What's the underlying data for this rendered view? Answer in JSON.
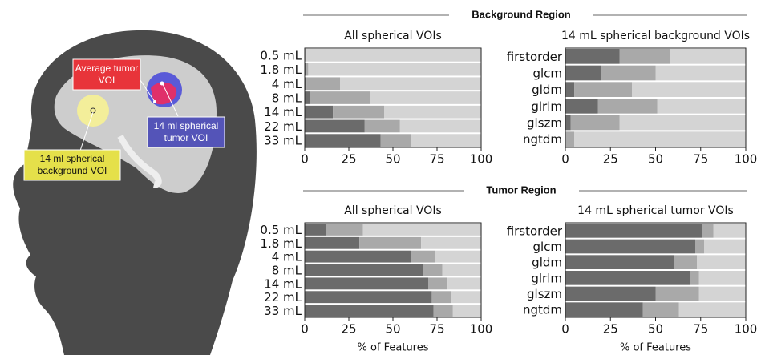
{
  "sections": [
    "Background Region",
    "Tumor Region"
  ],
  "illustration": {
    "labels": [
      "Average tumor VOI",
      "14 ml spherical tumor VOI",
      "14 ml spherical background VOI"
    ]
  },
  "chart_data": [
    {
      "type": "stacked-barh",
      "title": "All spherical VOIs",
      "categories": [
        "0.5 mL",
        "1.8 mL",
        "4 mL",
        "8 mL",
        "14 mL",
        "22 mL",
        "33 mL"
      ],
      "series": [
        {
          "color": "#6b6b6b",
          "values": [
            0,
            1,
            1,
            3,
            16,
            34,
            43
          ]
        },
        {
          "color": "#a9a9a9",
          "values": [
            1,
            1,
            19,
            34,
            29,
            20,
            17
          ]
        },
        {
          "color": "#d4d4d4",
          "values": [
            99,
            98,
            80,
            63,
            55,
            46,
            40
          ]
        }
      ],
      "xlim": [
        0,
        100
      ],
      "xticks": [
        0,
        25,
        50,
        75,
        100
      ]
    },
    {
      "type": "stacked-barh",
      "title": "14 mL spherical background VOIs",
      "categories": [
        "firstorder",
        "glcm",
        "gldm",
        "glrlm",
        "glszm",
        "ngtdm"
      ],
      "series": [
        {
          "color": "#6b6b6b",
          "values": [
            30,
            20,
            5,
            18,
            3,
            0
          ]
        },
        {
          "color": "#a9a9a9",
          "values": [
            28,
            30,
            32,
            33,
            27,
            5
          ]
        },
        {
          "color": "#d4d4d4",
          "values": [
            42,
            50,
            63,
            49,
            70,
            95
          ]
        }
      ],
      "xlim": [
        0,
        100
      ],
      "xticks": [
        0,
        25,
        50,
        75,
        100
      ]
    },
    {
      "type": "stacked-barh",
      "title": "All spherical VOIs",
      "xlabel": "% of Features",
      "categories": [
        "0.5 mL",
        "1.8 mL",
        "4 mL",
        "8 mL",
        "14 mL",
        "22 mL",
        "33 mL"
      ],
      "series": [
        {
          "color": "#6b6b6b",
          "values": [
            12,
            31,
            60,
            67,
            70,
            72,
            73
          ]
        },
        {
          "color": "#a9a9a9",
          "values": [
            21,
            35,
            14,
            11,
            11,
            11,
            11
          ]
        },
        {
          "color": "#d4d4d4",
          "values": [
            67,
            34,
            26,
            22,
            19,
            17,
            16
          ]
        }
      ],
      "xlim": [
        0,
        100
      ],
      "xticks": [
        0,
        25,
        50,
        75,
        100
      ]
    },
    {
      "type": "stacked-barh",
      "title": "14 mL spherical tumor VOIs",
      "xlabel": "% of Features",
      "categories": [
        "firstorder",
        "glcm",
        "gldm",
        "glrlm",
        "glszm",
        "ngtdm"
      ],
      "series": [
        {
          "color": "#6b6b6b",
          "values": [
            76,
            72,
            60,
            69,
            50,
            43
          ]
        },
        {
          "color": "#a9a9a9",
          "values": [
            6,
            5,
            13,
            5,
            24,
            20
          ]
        },
        {
          "color": "#d4d4d4",
          "values": [
            18,
            23,
            27,
            26,
            26,
            37
          ]
        }
      ],
      "xlim": [
        0,
        100
      ],
      "xticks": [
        0,
        25,
        50,
        75,
        100
      ]
    }
  ]
}
